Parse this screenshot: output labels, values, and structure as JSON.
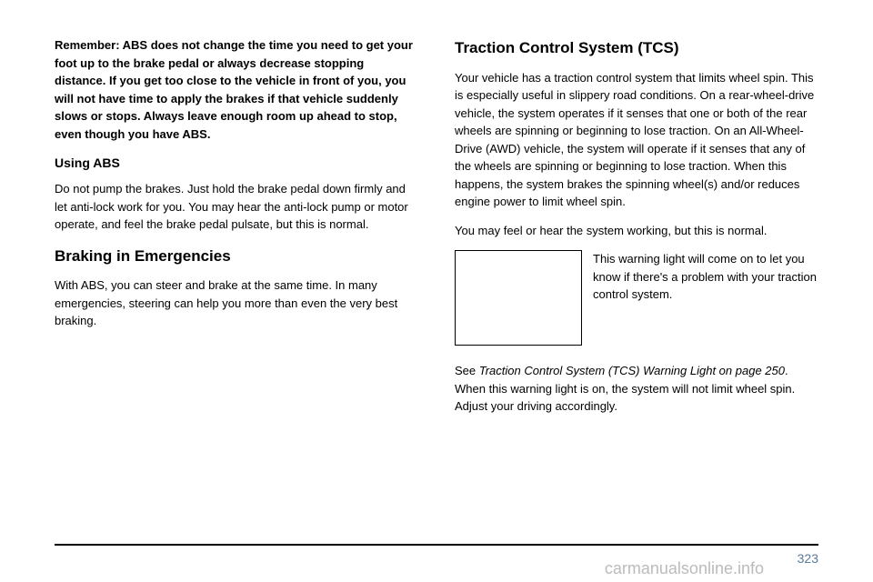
{
  "left": {
    "remember": "Remember: ABS does not change the time you need to get your foot up to the brake pedal or always decrease stopping distance. If you get too close to the vehicle in front of you, you will not have time to apply the brakes if that vehicle suddenly slows or stops. Always leave enough room up ahead to stop, even though you have ABS.",
    "usingAbsHead": "Using ABS",
    "usingAbsBody": "Do not pump the brakes. Just hold the brake pedal down firmly and let anti-lock work for you. You may hear the anti-lock pump or motor operate, and feel the brake pedal pulsate, but this is normal.",
    "brakingHead": "Braking in Emergencies",
    "brakingBody": "With ABS, you can steer and brake at the same time. In many emergencies, steering can help you more than even the very best braking."
  },
  "right": {
    "tcsHead": "Traction Control System (TCS)",
    "tcsBody1": "Your vehicle has a traction control system that limits wheel spin. This is especially useful in slippery road conditions. On a rear-wheel-drive vehicle, the system operates if it senses that one or both of the rear wheels are spinning or beginning to lose traction. On an All-Wheel-Drive (AWD) vehicle, the system will operate if it senses that any of the wheels are spinning or beginning to lose traction. When this happens, the system brakes the spinning wheel(s) and/or reduces engine power to limit wheel spin.",
    "tcsBody2": "You may feel or hear the system working, but this is normal.",
    "caption": "This warning light will come on to let you know if there's a problem with your traction control system.",
    "seePrefix": "See ",
    "seeItalic": "Traction Control System (TCS) Warning Light on page 250",
    "seeSuffix": ". When this warning light is on, the system will not limit wheel spin. Adjust your driving accordingly."
  },
  "pageNumber": "323",
  "watermark": "carmanualsonline.info"
}
